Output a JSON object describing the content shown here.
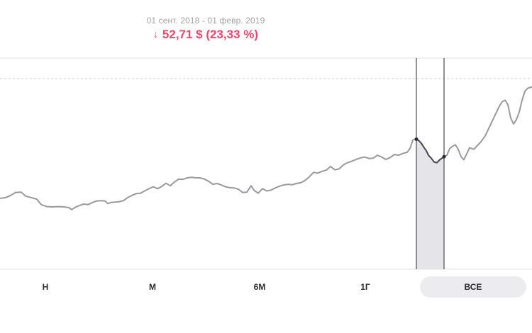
{
  "header": {
    "date_range": "01 сент. 2018 - 01 февр. 2019",
    "change_arrow": "↓",
    "change_value": "52,71 $ (23,33 %)"
  },
  "tabs": [
    {
      "label": "Н",
      "active": false
    },
    {
      "label": "М",
      "active": false
    },
    {
      "label": "6М",
      "active": false
    },
    {
      "label": "1Г",
      "active": false
    },
    {
      "label": "ВСЕ",
      "active": true
    }
  ],
  "colors": {
    "line": "#9a9a9e",
    "selection_line": "#4a4a52",
    "selection_fill": "#e4e4e9",
    "negative": "#f0466a",
    "grid": "#e2e2e5",
    "tab_active_bg": "#ececef"
  },
  "chart_data": {
    "type": "line",
    "grid": true,
    "selection": {
      "start": "01 сент. 2018",
      "end": "01 февр. 2019"
    },
    "series": [
      {
        "values": [
          [
            0,
            0.2
          ],
          [
            8,
            0.205
          ],
          [
            15,
            0.22
          ],
          [
            22,
            0.24
          ],
          [
            30,
            0.242
          ],
          [
            36,
            0.215
          ],
          [
            44,
            0.205
          ],
          [
            52,
            0.195
          ],
          [
            58,
            0.158
          ],
          [
            66,
            0.145
          ],
          [
            74,
            0.143
          ],
          [
            82,
            0.145
          ],
          [
            90,
            0.143
          ],
          [
            97,
            0.138
          ],
          [
            101,
            0.125
          ],
          [
            106,
            0.14
          ],
          [
            112,
            0.152
          ],
          [
            118,
            0.162
          ],
          [
            124,
            0.158
          ],
          [
            130,
            0.172
          ],
          [
            136,
            0.182
          ],
          [
            142,
            0.185
          ],
          [
            148,
            0.183
          ],
          [
            152,
            0.165
          ],
          [
            156,
            0.172
          ],
          [
            162,
            0.175
          ],
          [
            168,
            0.178
          ],
          [
            174,
            0.185
          ],
          [
            180,
            0.205
          ],
          [
            186,
            0.22
          ],
          [
            192,
            0.232
          ],
          [
            198,
            0.235
          ],
          [
            204,
            0.25
          ],
          [
            210,
            0.265
          ],
          [
            216,
            0.278
          ],
          [
            222,
            0.265
          ],
          [
            228,
            0.28
          ],
          [
            234,
            0.302
          ],
          [
            240,
            0.285
          ],
          [
            246,
            0.31
          ],
          [
            252,
            0.33
          ],
          [
            258,
            0.328
          ],
          [
            264,
            0.338
          ],
          [
            270,
            0.342
          ],
          [
            276,
            0.338
          ],
          [
            282,
            0.338
          ],
          [
            288,
            0.33
          ],
          [
            294,
            0.315
          ],
          [
            300,
            0.295
          ],
          [
            306,
            0.3
          ],
          [
            312,
            0.29
          ],
          [
            318,
            0.278
          ],
          [
            324,
            0.272
          ],
          [
            330,
            0.27
          ],
          [
            336,
            0.262
          ],
          [
            342,
            0.24
          ],
          [
            348,
            0.242
          ],
          [
            354,
            0.285
          ],
          [
            358,
            0.255
          ],
          [
            364,
            0.235
          ],
          [
            370,
            0.265
          ],
          [
            376,
            0.25
          ],
          [
            382,
            0.255
          ],
          [
            388,
            0.27
          ],
          [
            394,
            0.282
          ],
          [
            400,
            0.29
          ],
          [
            406,
            0.295
          ],
          [
            412,
            0.292
          ],
          [
            418,
            0.3
          ],
          [
            424,
            0.305
          ],
          [
            430,
            0.32
          ],
          [
            436,
            0.345
          ],
          [
            442,
            0.375
          ],
          [
            448,
            0.37
          ],
          [
            454,
            0.382
          ],
          [
            460,
            0.39
          ],
          [
            466,
            0.415
          ],
          [
            472,
            0.392
          ],
          [
            478,
            0.398
          ],
          [
            484,
            0.425
          ],
          [
            490,
            0.44
          ],
          [
            496,
            0.45
          ],
          [
            502,
            0.462
          ],
          [
            508,
            0.472
          ],
          [
            514,
            0.478
          ],
          [
            520,
            0.468
          ],
          [
            526,
            0.47
          ],
          [
            532,
            0.49
          ],
          [
            538,
            0.478
          ],
          [
            544,
            0.462
          ],
          [
            550,
            0.475
          ],
          [
            556,
            0.495
          ],
          [
            562,
            0.49
          ],
          [
            568,
            0.502
          ],
          [
            574,
            0.51
          ],
          [
            578,
            0.535
          ],
          [
            582,
            0.592
          ],
          [
            586,
            0.6
          ],
          [
            590,
            0.59
          ],
          [
            594,
            0.57
          ],
          [
            598,
            0.54
          ],
          [
            601,
            0.52
          ],
          [
            604,
            0.49
          ],
          [
            608,
            0.47
          ],
          [
            612,
            0.445
          ],
          [
            616,
            0.44
          ],
          [
            620,
            0.46
          ],
          [
            626,
            0.48
          ],
          [
            630,
            0.49
          ],
          [
            634,
            0.535
          ],
          [
            638,
            0.55
          ],
          [
            642,
            0.56
          ],
          [
            646,
            0.53
          ],
          [
            650,
            0.48
          ],
          [
            654,
            0.46
          ],
          [
            658,
            0.5
          ],
          [
            662,
            0.54
          ],
          [
            668,
            0.53
          ],
          [
            672,
            0.55
          ],
          [
            678,
            0.58
          ],
          [
            684,
            0.62
          ],
          [
            690,
            0.68
          ],
          [
            696,
            0.74
          ],
          [
            700,
            0.78
          ],
          [
            704,
            0.82
          ],
          [
            708,
            0.85
          ],
          [
            712,
            0.86
          ],
          [
            716,
            0.83
          ],
          [
            720,
            0.74
          ],
          [
            724,
            0.7
          ],
          [
            728,
            0.73
          ],
          [
            732,
            0.78
          ],
          [
            736,
            0.86
          ],
          [
            740,
            0.92
          ],
          [
            744,
            0.94
          ],
          [
            750,
            0.95
          ]
        ]
      }
    ]
  }
}
